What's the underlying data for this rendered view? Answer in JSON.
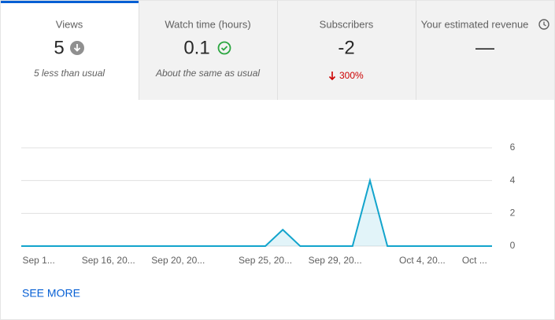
{
  "tabs": [
    {
      "label": "Views",
      "value": "5",
      "note": "5 less than usual"
    },
    {
      "label": "Watch time (hours)",
      "value": "0.1",
      "note": "About the same as usual"
    },
    {
      "label": "Subscribers",
      "value": "-2",
      "change": "300%"
    },
    {
      "label": "Your estimated revenue",
      "value": "—"
    }
  ],
  "chart_data": {
    "type": "line",
    "categories": [
      null,
      "Sep 1...",
      null,
      null,
      null,
      "Sep 16, 20...",
      null,
      null,
      null,
      "Sep 20, 20...",
      null,
      null,
      null,
      null,
      "Sep 25, 20...",
      null,
      null,
      null,
      "Sep 29, 20...",
      null,
      null,
      null,
      null,
      "Oct 4, 20...",
      null,
      null,
      "Oct ...",
      null
    ],
    "values": [
      0,
      0,
      0,
      0,
      0,
      0,
      0,
      0,
      0,
      0,
      0,
      0,
      0,
      0,
      0,
      1,
      0,
      0,
      0,
      0,
      4,
      0,
      0,
      0,
      0,
      0,
      0,
      0
    ],
    "color": "#12a4cc",
    "ylim": [
      0,
      6
    ],
    "yticks": [
      0,
      2,
      4,
      6
    ],
    "grid": true
  },
  "link": "SEE MORE"
}
